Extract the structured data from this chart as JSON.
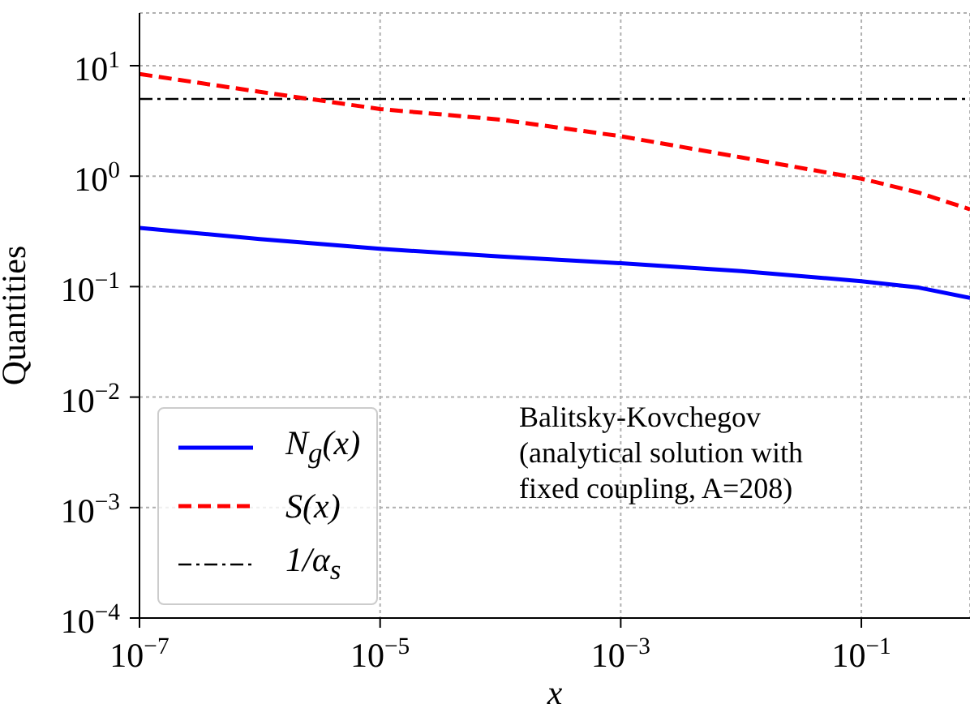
{
  "chart_data": {
    "type": "line",
    "xlabel": "x",
    "ylabel": "Quantities",
    "log": "xy",
    "grid": true,
    "legend": "bottom left",
    "x": [
      1e-07,
      1e-06,
      1e-05,
      0.0001,
      0.001,
      0.01,
      0.1,
      0.3,
      0.8
    ],
    "series": [
      {
        "name": "N$_{g}$(x)",
        "color": "#0000ff",
        "line_style": "solid",
        "values": [
          0.34,
          0.27,
          0.22,
          0.187,
          0.163,
          0.138,
          0.112,
          0.098,
          0.079
        ]
      },
      {
        "name": "S(x)",
        "color": "#ff0000",
        "line_style": "dashed",
        "values": [
          8.4,
          5.8,
          4.05,
          3.25,
          2.3,
          1.48,
          0.95,
          0.71,
          0.5
        ]
      }
    ],
    "ref_lines": [
      {
        "axis": "y",
        "value": 5,
        "label": "1/α$_{s}$",
        "color": "#000000",
        "line_style": "dashdot"
      }
    ],
    "annotations": [
      "Balitsky-Kovchegov\n(analytical solution with\nfixed coupling, A=208)"
    ],
    "xlim": [
      1e-07,
      0.8
    ],
    "ylim": [
      0.0001,
      30
    ],
    "xticks": [
      {
        "value": 1e-07,
        "label": "10$^{−7}$"
      },
      {
        "value": 1e-05,
        "label": "10$^{−5}$"
      },
      {
        "value": 0.001,
        "label": "10$^{−3}$"
      },
      {
        "value": 0.1,
        "label": "10$^{−1}$"
      }
    ],
    "yticks": [
      {
        "value": 0.0001,
        "label": "10$^{−4}$"
      },
      {
        "value": 0.001,
        "label": "10$^{−3}$"
      },
      {
        "value": 0.01,
        "label": "10$^{−2}$"
      },
      {
        "value": 0.1,
        "label": "10$^{−1}$"
      },
      {
        "value": 1,
        "label": "10$^{0}$"
      },
      {
        "value": 10,
        "label": "10$^{1}$"
      }
    ]
  }
}
